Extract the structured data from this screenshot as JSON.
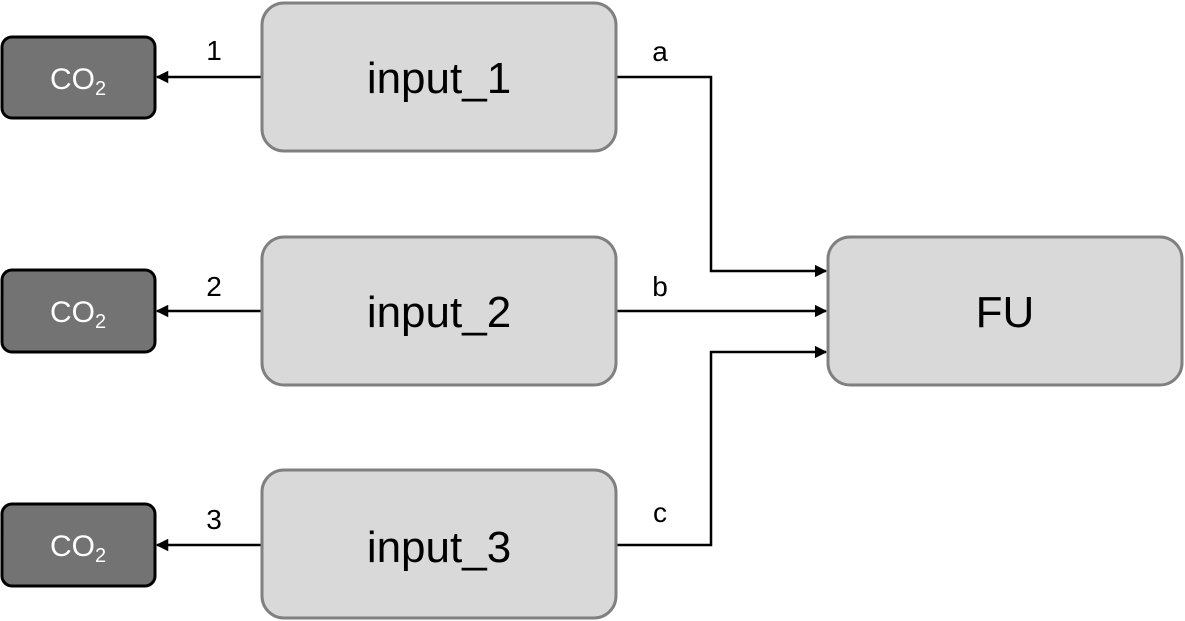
{
  "inputs": [
    {
      "label": "input_1"
    },
    {
      "label": "input_2"
    },
    {
      "label": "input_3"
    }
  ],
  "co2_nodes": [
    {
      "main": "CO",
      "sub": "2"
    },
    {
      "main": "CO",
      "sub": "2"
    },
    {
      "main": "CO",
      "sub": "2"
    }
  ],
  "fu": {
    "label": "FU"
  },
  "emission_edges": [
    "1",
    "2",
    "3"
  ],
  "flow_edges": [
    "a",
    "b",
    "c"
  ]
}
